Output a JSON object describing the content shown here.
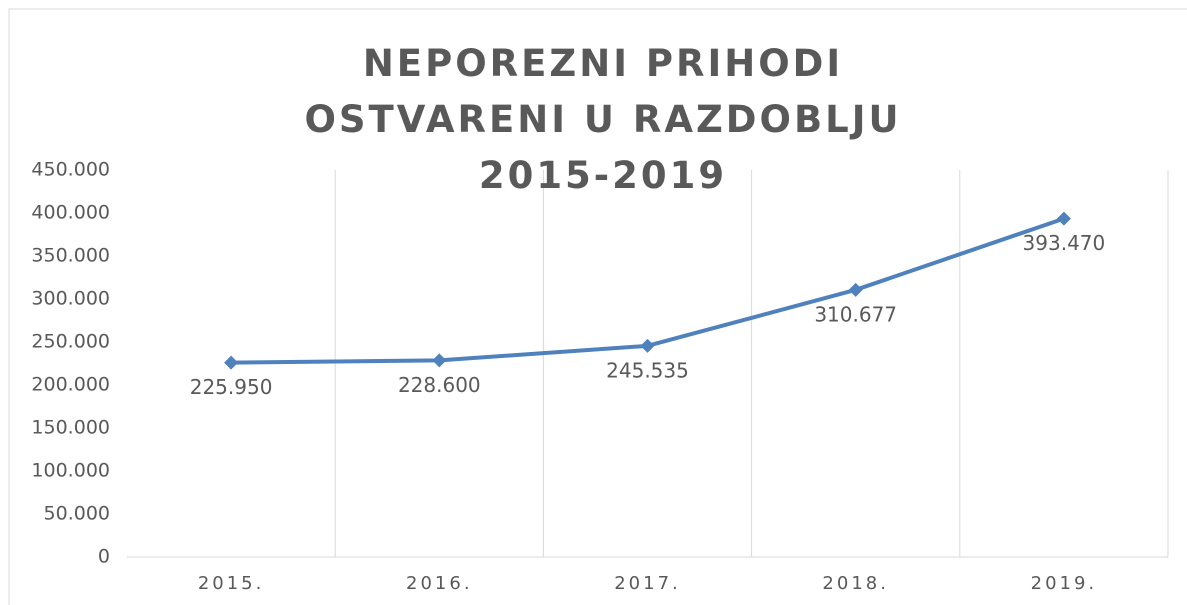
{
  "chart_data": {
    "type": "line",
    "title": "NEPOREZNI PRIHODI OSTVARENI U RAZDOBLJU 2015-2019",
    "categories": [
      "2015.",
      "2016.",
      "2017.",
      "2018.",
      "2019."
    ],
    "series": [
      {
        "name": "Neporezni prihodi",
        "color": "#4f81bd",
        "values": [
          225950,
          228600,
          245535,
          310677,
          393470
        ],
        "value_labels": [
          "225.950",
          "228.600",
          "245.535",
          "310.677",
          "393.470"
        ]
      }
    ],
    "ylim": [
      0,
      450000
    ],
    "yticks": [
      0,
      {
        "value": 50000,
        "label": "50.000"
      },
      {
        "value": 100000,
        "label": "100.000"
      },
      {
        "value": 150000,
        "label": "150.000"
      },
      {
        "value": 200000,
        "label": "200.000"
      },
      {
        "value": 250000,
        "label": "250.000"
      },
      {
        "value": 300000,
        "label": "300.000"
      },
      {
        "value": 350000,
        "label": "350.000"
      },
      {
        "value": 400000,
        "label": "400.000"
      },
      {
        "value": 450000,
        "label": "450.000"
      }
    ]
  }
}
